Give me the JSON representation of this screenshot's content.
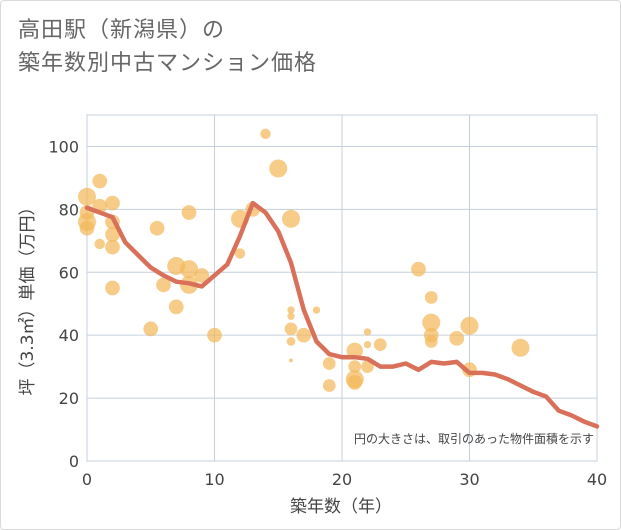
{
  "chart_data": {
    "type": "scatter",
    "title_lines": [
      "高田駅（新潟県）の",
      "築年数別中古マンション価格"
    ],
    "xlabel": "築年数（年）",
    "ylabel": "坪（3.3㎡）単価（万円）",
    "xlim": [
      0,
      40
    ],
    "ylim": [
      0,
      110
    ],
    "x_ticks": [
      0,
      10,
      20,
      30,
      40
    ],
    "y_ticks": [
      0,
      20,
      40,
      60,
      80,
      100
    ],
    "grid": true,
    "annotation": "円の大きさは、取引のあった物件面積を示す",
    "colors": {
      "bubble": "#f2b95a",
      "trend": "#d9705a",
      "grid": "#c5d0dd"
    },
    "points": [
      {
        "x": 0,
        "y": 84,
        "s": 3
      },
      {
        "x": 0,
        "y": 79,
        "s": 2
      },
      {
        "x": 0,
        "y": 76,
        "s": 3
      },
      {
        "x": 0,
        "y": 74,
        "s": 2
      },
      {
        "x": 1,
        "y": 89,
        "s": 2
      },
      {
        "x": 1,
        "y": 81,
        "s": 2
      },
      {
        "x": 1,
        "y": 69,
        "s": 1
      },
      {
        "x": 2,
        "y": 82,
        "s": 2
      },
      {
        "x": 2,
        "y": 76,
        "s": 2
      },
      {
        "x": 2,
        "y": 72,
        "s": 2
      },
      {
        "x": 2,
        "y": 68,
        "s": 2
      },
      {
        "x": 2,
        "y": 55,
        "s": 2
      },
      {
        "x": 5,
        "y": 42,
        "s": 2
      },
      {
        "x": 5.5,
        "y": 74,
        "s": 2
      },
      {
        "x": 6,
        "y": 56,
        "s": 2
      },
      {
        "x": 7,
        "y": 62,
        "s": 3
      },
      {
        "x": 7,
        "y": 49,
        "s": 2
      },
      {
        "x": 8,
        "y": 79,
        "s": 2
      },
      {
        "x": 8,
        "y": 61,
        "s": 3
      },
      {
        "x": 8,
        "y": 56,
        "s": 3
      },
      {
        "x": 9,
        "y": 59,
        "s": 2
      },
      {
        "x": 10,
        "y": 40,
        "s": 2
      },
      {
        "x": 12,
        "y": 77,
        "s": 3
      },
      {
        "x": 12,
        "y": 66,
        "s": 1
      },
      {
        "x": 13,
        "y": 80,
        "s": 2
      },
      {
        "x": 14,
        "y": 104,
        "s": 1
      },
      {
        "x": 15,
        "y": 93,
        "s": 3
      },
      {
        "x": 16,
        "y": 77,
        "s": 3
      },
      {
        "x": 16,
        "y": 48,
        "s": 0.5
      },
      {
        "x": 16,
        "y": 46,
        "s": 0.5
      },
      {
        "x": 16,
        "y": 42,
        "s": 1.5
      },
      {
        "x": 16,
        "y": 38,
        "s": 0.7
      },
      {
        "x": 16,
        "y": 32,
        "s": 0.15
      },
      {
        "x": 17,
        "y": 40,
        "s": 2
      },
      {
        "x": 18,
        "y": 48,
        "s": 0.5
      },
      {
        "x": 19,
        "y": 31,
        "s": 1.5
      },
      {
        "x": 19,
        "y": 24,
        "s": 1.5
      },
      {
        "x": 21,
        "y": 35,
        "s": 2.5
      },
      {
        "x": 21,
        "y": 30,
        "s": 1.5
      },
      {
        "x": 21,
        "y": 26,
        "s": 3
      },
      {
        "x": 21,
        "y": 25,
        "s": 2
      },
      {
        "x": 22,
        "y": 41,
        "s": 0.5
      },
      {
        "x": 22,
        "y": 37,
        "s": 0.5
      },
      {
        "x": 22,
        "y": 30,
        "s": 1.5
      },
      {
        "x": 23,
        "y": 37,
        "s": 1.5
      },
      {
        "x": 26,
        "y": 61,
        "s": 2
      },
      {
        "x": 27,
        "y": 52,
        "s": 1.5
      },
      {
        "x": 27,
        "y": 44,
        "s": 3
      },
      {
        "x": 27,
        "y": 40,
        "s": 2
      },
      {
        "x": 27,
        "y": 38,
        "s": 1.5
      },
      {
        "x": 29,
        "y": 39,
        "s": 2
      },
      {
        "x": 30,
        "y": 43,
        "s": 3
      },
      {
        "x": 30,
        "y": 29,
        "s": 2
      },
      {
        "x": 34,
        "y": 36,
        "s": 3
      }
    ],
    "trend": {
      "x": [
        0,
        1,
        2,
        3,
        4,
        5,
        6,
        7,
        8,
        9,
        10,
        11,
        12,
        13,
        14,
        15,
        16,
        17,
        18,
        19,
        20,
        21,
        22,
        23,
        24,
        25,
        26,
        27,
        28,
        29,
        30,
        31,
        32,
        33,
        34,
        35,
        36,
        37,
        38,
        39,
        40
      ],
      "y": [
        80.5,
        79,
        77.5,
        69.5,
        65.5,
        61.5,
        59,
        57,
        56.5,
        55.5,
        59,
        62.5,
        71.5,
        82,
        79,
        73,
        63,
        48,
        38,
        34,
        33,
        33,
        32.5,
        30,
        30,
        31,
        29,
        31.5,
        31,
        31.5,
        28,
        28,
        27.5,
        26,
        24,
        22,
        20.5,
        16,
        14.5,
        12.5,
        11
      ]
    }
  }
}
